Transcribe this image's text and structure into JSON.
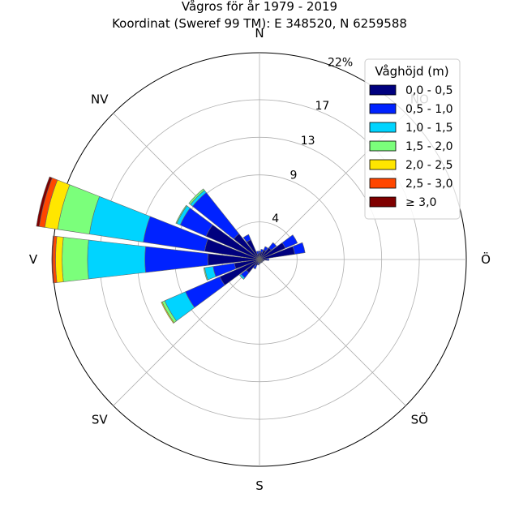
{
  "chart_data": {
    "type": "polar-bar",
    "title": "Vågros för år 1979 - 2019",
    "subtitle": "Koordinat (Sweref 99 TM): E 348520, N 6259588",
    "directions": [
      "N",
      "NO",
      "Ö",
      "SÖ",
      "S",
      "SV",
      "V",
      "NV"
    ],
    "radial_ticks": [
      4,
      9,
      13,
      17,
      22
    ],
    "radial_tick_labels": [
      "4",
      "9",
      "13",
      "17",
      "22%"
    ],
    "radial_max": 22,
    "legend": {
      "title": "Våghöjd (m)",
      "placement": "top-right",
      "entries": [
        "0,0 - 0,5",
        "0,5 - 1,0",
        "1,0 - 1,5",
        "1,5 - 2,0",
        "2,0 - 2,5",
        "2,5 - 3,0",
        "≥ 3,0"
      ]
    },
    "colors": [
      "#00007f",
      "#0022ff",
      "#00d4ff",
      "#7bff7b",
      "#ffe600",
      "#ff4600",
      "#7f0000"
    ],
    "sector_width_deg": 13,
    "sectors": [
      {
        "direction_deg": 0,
        "values": [
          0.7,
          0.2,
          0,
          0,
          0,
          0,
          0
        ]
      },
      {
        "direction_deg": 15,
        "values": [
          0.8,
          0.3,
          0,
          0,
          0,
          0,
          0
        ]
      },
      {
        "direction_deg": 30,
        "values": [
          1.1,
          0.4,
          0,
          0,
          0,
          0,
          0
        ]
      },
      {
        "direction_deg": 45,
        "values": [
          1.6,
          0.7,
          0,
          0,
          0,
          0,
          0
        ]
      },
      {
        "direction_deg": 60,
        "values": [
          3.0,
          1.4,
          0,
          0,
          0,
          0,
          0
        ]
      },
      {
        "direction_deg": 75,
        "values": [
          3.8,
          1.1,
          0,
          0,
          0,
          0,
          0
        ]
      },
      {
        "direction_deg": 90,
        "values": [
          0.8,
          0.2,
          0,
          0,
          0,
          0,
          0
        ]
      },
      {
        "direction_deg": 105,
        "values": [
          0.4,
          0.1,
          0,
          0,
          0,
          0,
          0
        ]
      },
      {
        "direction_deg": 120,
        "values": [
          0.3,
          0.1,
          0,
          0,
          0,
          0,
          0
        ]
      },
      {
        "direction_deg": 135,
        "values": [
          0.3,
          0.1,
          0,
          0,
          0,
          0,
          0
        ]
      },
      {
        "direction_deg": 150,
        "values": [
          0.3,
          0.1,
          0,
          0,
          0,
          0,
          0
        ]
      },
      {
        "direction_deg": 165,
        "values": [
          0.3,
          0.1,
          0,
          0,
          0,
          0,
          0
        ]
      },
      {
        "direction_deg": 180,
        "values": [
          0.4,
          0.1,
          0,
          0,
          0,
          0,
          0
        ]
      },
      {
        "direction_deg": 195,
        "values": [
          0.4,
          0.2,
          0,
          0,
          0,
          0,
          0
        ]
      },
      {
        "direction_deg": 210,
        "values": [
          0.7,
          0.4,
          0,
          0,
          0,
          0,
          0
        ]
      },
      {
        "direction_deg": 225,
        "values": [
          1.8,
          0.7,
          0.2,
          0,
          0,
          0,
          0
        ]
      },
      {
        "direction_deg": 240,
        "values": [
          4.6,
          4.0,
          2.4,
          0.3,
          0.1,
          0,
          0
        ]
      },
      {
        "direction_deg": 255,
        "values": [
          2.7,
          2.3,
          0.9,
          0.1,
          0,
          0,
          0
        ]
      },
      {
        "direction_deg": 270,
        "values": [
          5.5,
          6.7,
          6.1,
          2.7,
          0.7,
          0.3,
          0.1
        ]
      },
      {
        "direction_deg": 285,
        "values": [
          5.9,
          6.6,
          5.8,
          3.4,
          1.4,
          0.6,
          0.3
        ]
      },
      {
        "direction_deg": 300,
        "values": [
          6.2,
          3.0,
          0.4,
          0.1,
          0,
          0,
          0
        ]
      },
      {
        "direction_deg": 315,
        "values": [
          3.5,
          5.6,
          0.3,
          0.2,
          0,
          0,
          0
        ]
      },
      {
        "direction_deg": 330,
        "values": [
          2.3,
          0.6,
          0,
          0,
          0,
          0,
          0
        ]
      },
      {
        "direction_deg": 345,
        "values": [
          0.6,
          0.3,
          0,
          0,
          0,
          0,
          0
        ]
      }
    ]
  }
}
